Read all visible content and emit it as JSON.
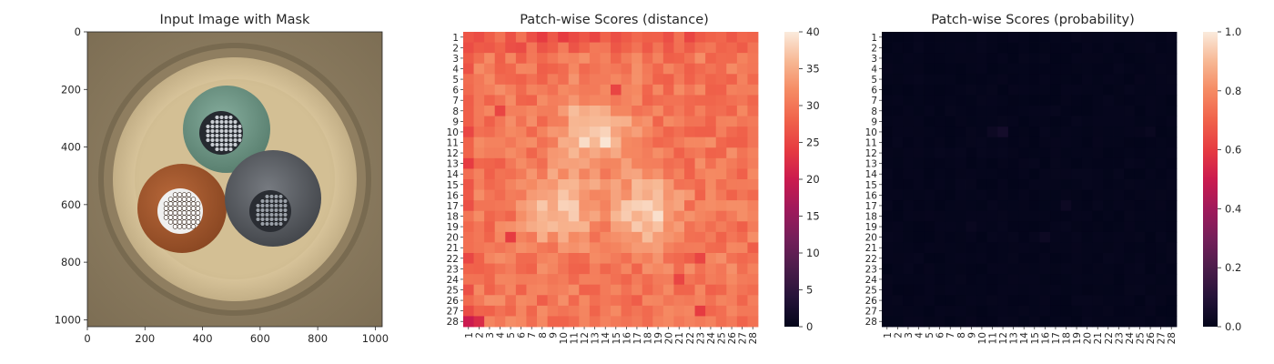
{
  "chart_data": [
    {
      "type": "image",
      "title": "Input Image with Mask",
      "xticks": [
        0,
        200,
        400,
        600,
        800,
        1000
      ],
      "yticks": [
        0,
        200,
        400,
        600,
        800,
        1000
      ],
      "xlim": [
        0,
        1024
      ],
      "ylim": [
        1024,
        0
      ],
      "image_description_palette": {
        "background": "#8a7a5e",
        "ring": "#d8c49a",
        "cable_green": "#6f9a8a",
        "cable_brown": "#a35a2e",
        "cable_gray": "#5e6166",
        "strands": "#cfd3d8"
      }
    },
    {
      "type": "heatmap",
      "title": "Patch-wise Scores (distance)",
      "rows": 28,
      "cols": 28,
      "row_labels": [
        "1",
        "2",
        "3",
        "4",
        "5",
        "6",
        "7",
        "8",
        "9",
        "10",
        "11",
        "12",
        "13",
        "14",
        "15",
        "16",
        "17",
        "18",
        "19",
        "20",
        "21",
        "22",
        "23",
        "24",
        "25",
        "26",
        "27",
        "28"
      ],
      "col_labels": [
        "1",
        "2",
        "3",
        "4",
        "5",
        "6",
        "7",
        "8",
        "9",
        "10",
        "11",
        "12",
        "13",
        "14",
        "15",
        "16",
        "17",
        "18",
        "19",
        "20",
        "21",
        "22",
        "23",
        "24",
        "25",
        "26",
        "27",
        "28"
      ],
      "colorbar": {
        "min": 0,
        "max": 40,
        "ticks": [
          "0",
          "5",
          "10",
          "15",
          "20",
          "25",
          "30",
          "35",
          "40"
        ]
      },
      "colormap": "rocket",
      "base_value": 30,
      "hotspots": [
        {
          "row": 10,
          "col": 13,
          "value": 39,
          "spread": 2.2
        },
        {
          "row": 17.5,
          "col": 10,
          "value": 37,
          "spread": 2.3
        },
        {
          "row": 17.5,
          "col": 18,
          "value": 39,
          "spread": 2.0
        }
      ],
      "low_spots": [
        {
          "row": 1,
          "col": 8,
          "value": 24
        },
        {
          "row": 1,
          "col": 10,
          "value": 24
        },
        {
          "row": 1,
          "col": 13,
          "value": 25
        },
        {
          "row": 1,
          "col": 22,
          "value": 25
        },
        {
          "row": 6,
          "col": 15,
          "value": 25
        },
        {
          "row": 8,
          "col": 4,
          "value": 25
        },
        {
          "row": 13,
          "col": 1,
          "value": 24
        },
        {
          "row": 20,
          "col": 5,
          "value": 24
        },
        {
          "row": 22,
          "col": 23,
          "value": 25
        },
        {
          "row": 24,
          "col": 21,
          "value": 25
        },
        {
          "row": 27,
          "col": 23,
          "value": 24
        },
        {
          "row": 28,
          "col": 1,
          "value": 20
        },
        {
          "row": 28,
          "col": 2,
          "value": 22
        }
      ]
    },
    {
      "type": "heatmap",
      "title": "Patch-wise Scores (probability)",
      "rows": 28,
      "cols": 28,
      "row_labels": [
        "1",
        "2",
        "3",
        "4",
        "5",
        "6",
        "7",
        "8",
        "9",
        "10",
        "11",
        "12",
        "13",
        "14",
        "15",
        "16",
        "17",
        "18",
        "19",
        "20",
        "21",
        "22",
        "23",
        "24",
        "25",
        "26",
        "27",
        "28"
      ],
      "col_labels": [
        "1",
        "2",
        "3",
        "4",
        "5",
        "6",
        "7",
        "8",
        "9",
        "10",
        "11",
        "12",
        "13",
        "14",
        "15",
        "16",
        "17",
        "18",
        "19",
        "20",
        "21",
        "22",
        "23",
        "24",
        "25",
        "26",
        "27",
        "28"
      ],
      "colorbar": {
        "min": 0.0,
        "max": 1.0,
        "ticks": [
          "0.0",
          "0.2",
          "0.4",
          "0.6",
          "0.8",
          "1.0"
        ]
      },
      "colormap": "rocket",
      "base_value": 0.0,
      "faint_spots": [
        {
          "row": 10,
          "col": 12,
          "value": 0.05
        },
        {
          "row": 10,
          "col": 11,
          "value": 0.03
        },
        {
          "row": 17,
          "col": 18,
          "value": 0.03
        },
        {
          "row": 19,
          "col": 9,
          "value": 0.02
        },
        {
          "row": 20,
          "col": 16,
          "value": 0.03
        },
        {
          "row": 10,
          "col": 26,
          "value": 0.02
        }
      ]
    }
  ]
}
